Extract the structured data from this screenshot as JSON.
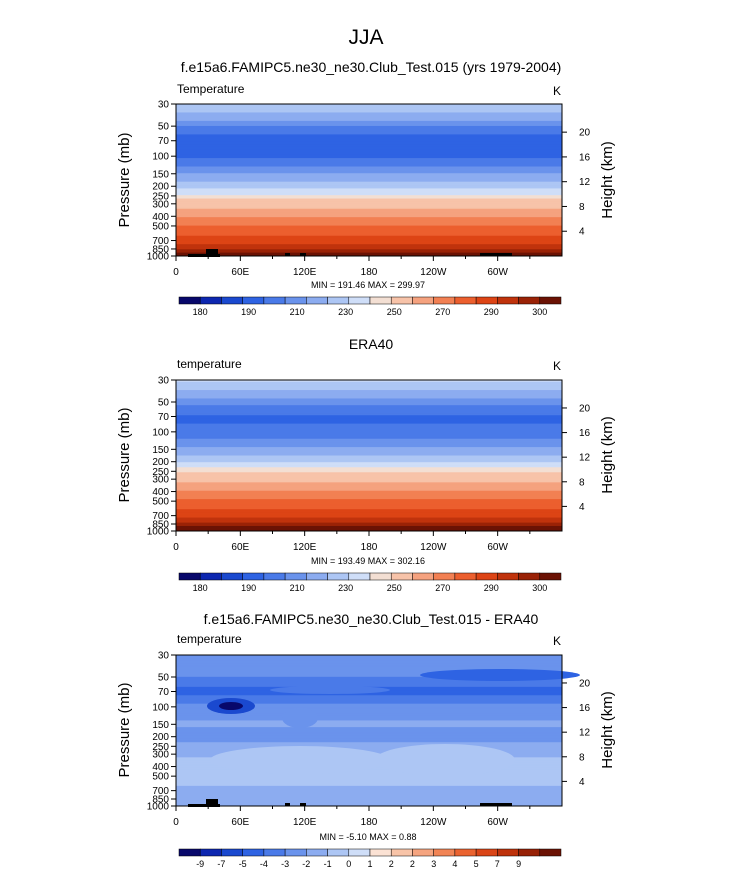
{
  "season_title": "JJA",
  "pressure_ticks": [
    30,
    50,
    70,
    100,
    150,
    200,
    250,
    300,
    400,
    500,
    700,
    850,
    1000
  ],
  "height_ticks": [
    4,
    8,
    12,
    16,
    20
  ],
  "lon_ticks": [
    "0",
    "60E",
    "120E",
    "180",
    "120W",
    "60W"
  ],
  "ylabel": "Pressure (mb)",
  "y2label": "Height (km)",
  "unit": "K",
  "colors": {
    "temp_scale": [
      "#08086b",
      "#0d27b0",
      "#1a49cf",
      "#2e63e3",
      "#4a7ae8",
      "#6a93ec",
      "#8cacf0",
      "#adc6f4",
      "#cfdef8",
      "#f3dfd3",
      "#f7c3a9",
      "#f5a27f",
      "#f28053",
      "#ec5f2e",
      "#dd4415",
      "#c0330c",
      "#9a2206",
      "#6b1204"
    ],
    "diff_scale": [
      "#08086b",
      "#0d27b0",
      "#1a49cf",
      "#2e63e3",
      "#4a7ae8",
      "#6a93ec",
      "#8cacf0",
      "#adc6f4",
      "#cfdef8",
      "#fbe2d4",
      "#f8c4a8",
      "#f5a47f",
      "#f18455",
      "#ea6330",
      "#da4517",
      "#be320b",
      "#972106",
      "#6b1204"
    ],
    "topography": "#000000"
  },
  "panels": [
    {
      "title": "f.e15a6.FAMIPC5.ne30_ne30.Club_Test.015 (yrs 1979-2004)",
      "variable": "Temperature",
      "unit": "K",
      "stats": "MIN = 191.46  MAX = 299.97",
      "min": 191.46,
      "max": 299.97,
      "colorbar_labels": [
        "180",
        "190",
        "210",
        "230",
        "250",
        "270",
        "290",
        "300"
      ],
      "scale": "temp"
    },
    {
      "title": "ERA40",
      "variable": "temperature",
      "unit": "K",
      "stats": "MIN = 193.49  MAX = 302.16",
      "min": 193.49,
      "max": 302.16,
      "colorbar_labels": [
        "180",
        "190",
        "210",
        "230",
        "250",
        "270",
        "290",
        "300"
      ],
      "scale": "temp"
    },
    {
      "title": "f.e15a6.FAMIPC5.ne30_ne30.Club_Test.015 - ERA40",
      "variable": "temperature",
      "unit": "K",
      "stats": "MIN = -5.10  MAX =   0.88",
      "min": -5.1,
      "max": 0.88,
      "colorbar_labels": [
        "-9",
        "-7",
        "-5",
        "-4",
        "-3",
        "-2",
        "-1",
        "0",
        "1",
        "2",
        "2",
        "3",
        "4",
        "5",
        "7",
        "9"
      ],
      "scale": "diff"
    }
  ],
  "chart_data": [
    {
      "type": "heatmap",
      "title": "f.e15a6.FAMIPC5.ne30_ne30.Club_Test.015 (yrs 1979-2004)",
      "xlabel": "",
      "ylabel": "Pressure (mb)",
      "y2label": "Height (km)",
      "x_ticks": [
        "0",
        "60E",
        "120E",
        "180",
        "120W",
        "60W"
      ],
      "y_ticks": [
        30,
        50,
        70,
        100,
        150,
        200,
        250,
        300,
        400,
        500,
        700,
        850,
        1000
      ],
      "y_scale": "log",
      "ylim": [
        1000,
        30
      ],
      "levels": [
        [
          1000,
          295
        ],
        [
          925,
          290
        ],
        [
          850,
          284
        ],
        [
          700,
          276
        ],
        [
          600,
          268
        ],
        [
          500,
          260
        ],
        [
          400,
          249
        ],
        [
          300,
          235
        ],
        [
          250,
          226
        ],
        [
          200,
          218
        ],
        [
          150,
          210
        ],
        [
          100,
          199
        ],
        [
          70,
          196
        ],
        [
          50,
          205
        ],
        [
          40,
          213
        ],
        [
          30,
          220
        ]
      ]
    },
    {
      "type": "heatmap",
      "title": "ERA40",
      "xlabel": "",
      "ylabel": "Pressure (mb)",
      "y2label": "Height (km)",
      "x_ticks": [
        "0",
        "60E",
        "120E",
        "180",
        "120W",
        "60W"
      ],
      "y_ticks": [
        30,
        50,
        70,
        100,
        150,
        200,
        250,
        300,
        400,
        500,
        700,
        850,
        1000
      ],
      "y_scale": "log",
      "ylim": [
        1000,
        30
      ],
      "levels": [
        [
          1000,
          297
        ],
        [
          925,
          292
        ],
        [
          850,
          286
        ],
        [
          700,
          278
        ],
        [
          600,
          270
        ],
        [
          500,
          262
        ],
        [
          400,
          251
        ],
        [
          300,
          237
        ],
        [
          250,
          228
        ],
        [
          200,
          220
        ],
        [
          150,
          211
        ],
        [
          100,
          201
        ],
        [
          70,
          199
        ],
        [
          50,
          207
        ],
        [
          40,
          214
        ],
        [
          30,
          221
        ]
      ]
    },
    {
      "type": "heatmap",
      "title": "f.e15a6.FAMIPC5.ne30_ne30.Club_Test.015 - ERA40",
      "xlabel": "",
      "ylabel": "Pressure (mb)",
      "y2label": "Height (km)",
      "x_ticks": [
        "0",
        "60E",
        "120E",
        "180",
        "120W",
        "60W"
      ],
      "y_ticks": [
        30,
        50,
        70,
        100,
        150,
        200,
        250,
        300,
        400,
        500,
        700,
        850,
        1000
      ],
      "y_scale": "log",
      "ylim": [
        1000,
        30
      ],
      "levels": [
        [
          1000,
          -1.5
        ],
        [
          850,
          -1.8
        ],
        [
          700,
          -1.2
        ],
        [
          500,
          -0.6
        ],
        [
          400,
          -0.5
        ],
        [
          300,
          -1.2
        ],
        [
          250,
          -1.6
        ],
        [
          200,
          -2.5
        ],
        [
          150,
          -1.8
        ],
        [
          100,
          -2.6
        ],
        [
          70,
          -4.4
        ],
        [
          50,
          -3.0
        ],
        [
          40,
          -2.6
        ],
        [
          30,
          -3.0
        ]
      ]
    }
  ]
}
